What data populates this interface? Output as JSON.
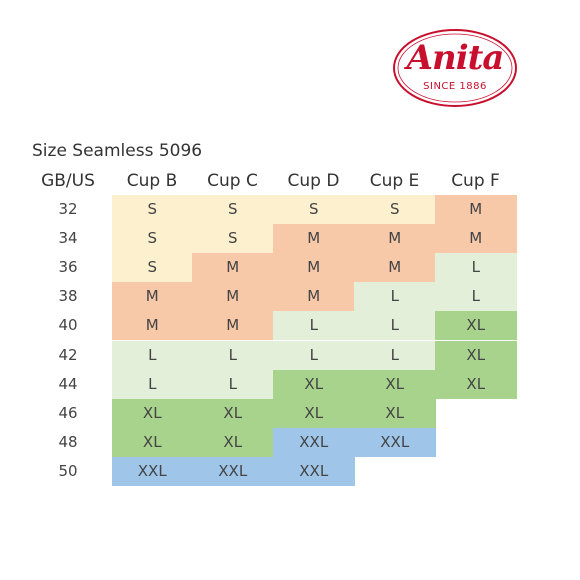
{
  "logo": {
    "brand": "Anita",
    "since": "SINCE 1886"
  },
  "table": {
    "title": "Size Seamless 5096",
    "header": [
      "GB/US",
      "Cup B",
      "Cup C",
      "Cup D",
      "Cup E",
      "Cup F"
    ],
    "rows": [
      [
        "32",
        "S",
        "S",
        "S",
        "S",
        "M"
      ],
      [
        "34",
        "S",
        "S",
        "M",
        "M",
        "M"
      ],
      [
        "36",
        "S",
        "M",
        "M",
        "M",
        "L"
      ],
      [
        "38",
        "M",
        "M",
        "M",
        "L",
        "L"
      ],
      [
        "40",
        "M",
        "M",
        "L",
        "L",
        "XL"
      ],
      [
        "42",
        "L",
        "L",
        "L",
        "L",
        "XL"
      ],
      [
        "44",
        "L",
        "L",
        "XL",
        "XL",
        "XL"
      ],
      [
        "46",
        "XL",
        "XL",
        "XL",
        "XL",
        null
      ],
      [
        "48",
        "XL",
        "XL",
        "XXL",
        "XXL",
        null
      ],
      [
        "50",
        "XXL",
        "XXL",
        "XXL",
        null,
        null
      ]
    ]
  }
}
